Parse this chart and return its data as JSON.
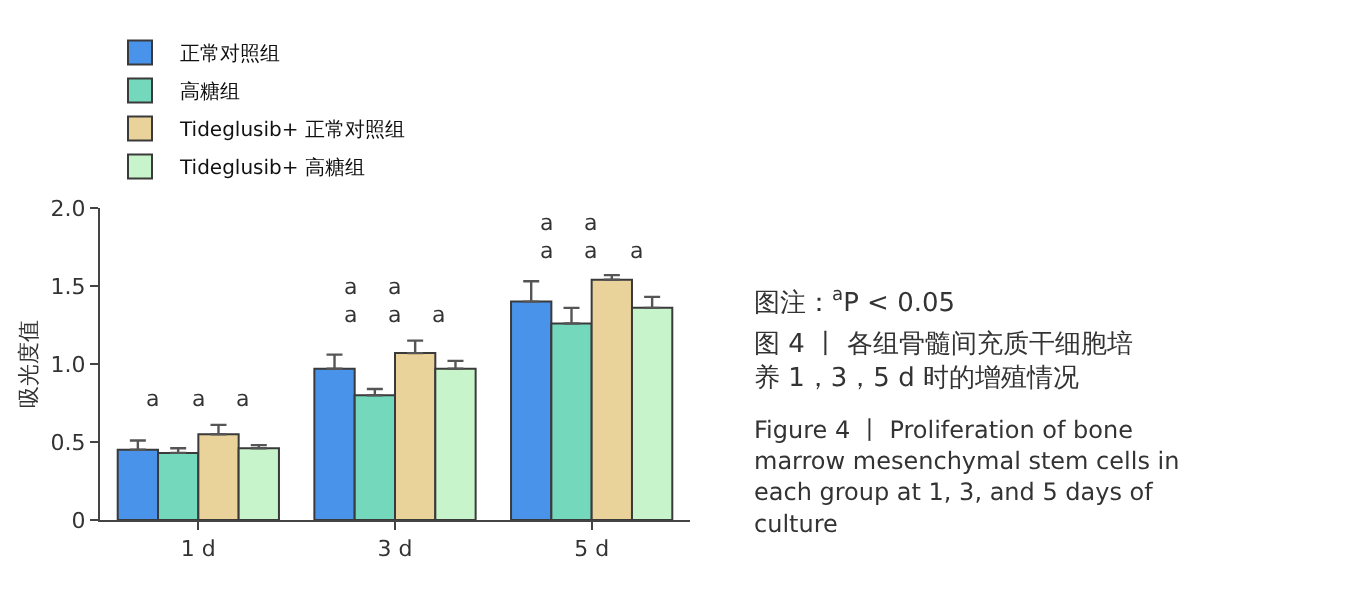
{
  "chart_data": {
    "type": "bar",
    "title": "图 4 丨 各组骨髓间充质干细胞培养 1，3，5 d 时的增殖情况",
    "subtitle": "Figure 4 丨 Proliferation of bone marrow mesenchymal stem cells in each group at 1, 3, and 5 days of culture",
    "categories": [
      "1 d",
      "3 d",
      "5 d"
    ],
    "ylabel": "吸光度值",
    "ylim": [
      0,
      2.0
    ],
    "yticks": [
      0,
      {
        "value": 0.5,
        "label": "0.5"
      },
      {
        "value": 1.0,
        "label": "1.0"
      },
      {
        "value": 1.5,
        "label": "1.5"
      },
      {
        "value": 2.0,
        "label": "2.0"
      }
    ],
    "legend": "top left",
    "series": [
      {
        "name": "正常对照组",
        "color": "#4a93ea",
        "values": [
          0.45,
          0.97,
          1.4
        ],
        "errors": [
          [
            0.45,
            0.51
          ],
          [
            0.97,
            1.06
          ],
          [
            1.4,
            1.53
          ]
        ]
      },
      {
        "name": "高糖组",
        "color": "#74d8bd",
        "values": [
          0.43,
          0.8,
          1.26
        ],
        "errors": [
          [
            0.43,
            0.46
          ],
          [
            0.8,
            0.84
          ],
          [
            1.26,
            1.36
          ]
        ]
      },
      {
        "name": "Tideglusib+ 正常对照组",
        "color": "#e9d39b",
        "values": [
          0.55,
          1.07,
          1.54
        ],
        "errors": [
          [
            0.55,
            0.61
          ],
          [
            1.07,
            1.15
          ],
          [
            1.54,
            1.57
          ]
        ]
      },
      {
        "name": "Tideglusib+ 高糖组",
        "color": "#c8f4cb",
        "values": [
          0.46,
          0.97,
          1.36
        ],
        "errors": [
          [
            0.46,
            0.48
          ],
          [
            0.97,
            1.02
          ],
          [
            1.36,
            1.43
          ]
        ]
      }
    ],
    "annotations": [
      "a",
      "a",
      "a",
      "a",
      "a",
      "a",
      "a",
      "a",
      "a",
      "a",
      "a",
      "a",
      "a",
      "图注：$^{a}$P < 0.05"
    ]
  }
}
